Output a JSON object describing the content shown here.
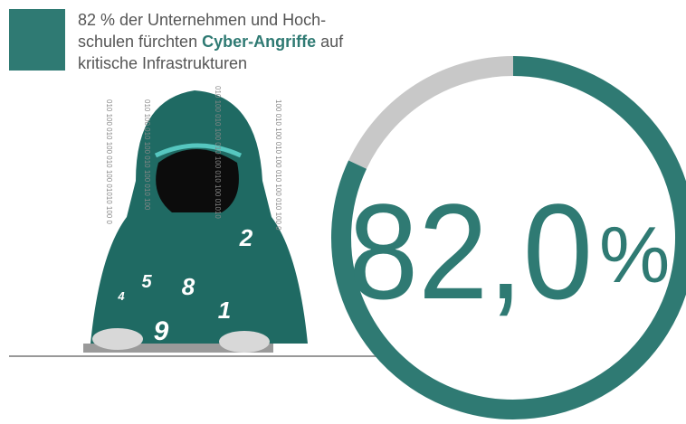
{
  "chart_data": {
    "type": "donut",
    "title": {
      "before": "82 % der Unternehmen und Hoch-",
      "line2": "schulen fürchten",
      "highlight": "Cyber-Angriffe",
      "after": "auf",
      "line3": "kritische Infrastrukturen"
    },
    "values": [
      82,
      18
    ],
    "colors": [
      "#2f7a73",
      "#c8c8c8"
    ],
    "center_label": {
      "number": "82,0",
      "unit": "%"
    }
  },
  "illustration": {
    "digits": [
      "2",
      "5",
      "8",
      "4",
      "1",
      "9"
    ],
    "binary": [
      "010 100 010 100 010 100 01010 100 0",
      "010 100 010 100 010 100 010 100",
      "010 100 010 100 010 100 010 100 01010",
      "100 010 100 010 100 010 100 010 100 0"
    ]
  }
}
